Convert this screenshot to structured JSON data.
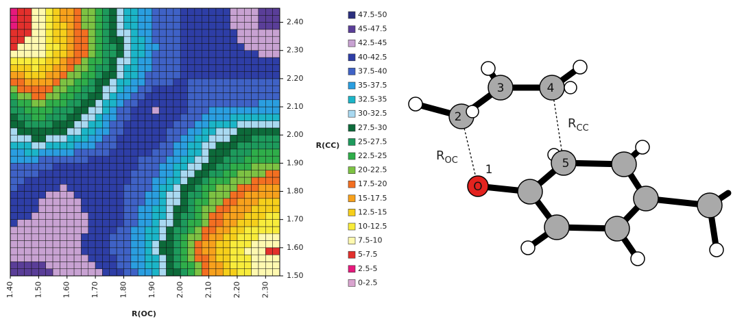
{
  "chart_data": {
    "type": "contour",
    "xlabel": "R(OC)",
    "ylabel": "R(CC)",
    "x": [
      1.4,
      1.5,
      1.6,
      1.7,
      1.8,
      1.9,
      2.0,
      2.1,
      2.2,
      2.3
    ],
    "y": [
      1.5,
      1.6,
      1.7,
      1.8,
      1.9,
      2.0,
      2.1,
      2.2,
      2.3,
      2.4
    ],
    "z": [
      [
        46,
        46,
        44,
        44,
        40,
        35,
        27,
        18,
        12,
        9
      ],
      [
        44,
        44,
        44,
        41,
        38,
        33,
        24,
        16,
        11,
        7
      ],
      [
        42,
        43,
        44,
        42,
        40,
        35,
        28,
        20,
        15,
        12
      ],
      [
        40,
        42,
        43,
        41,
        40,
        37,
        30,
        23,
        19,
        16
      ],
      [
        37,
        39,
        40,
        41,
        41,
        39,
        35,
        29,
        25,
        22
      ],
      [
        32,
        28,
        31,
        36,
        41,
        42,
        38,
        33,
        29,
        27
      ],
      [
        27,
        22,
        26,
        31,
        38,
        43,
        41,
        38,
        38,
        37
      ],
      [
        18,
        14,
        20,
        26,
        33,
        39,
        40,
        40,
        40,
        40
      ],
      [
        8,
        8,
        15,
        22,
        30,
        37,
        40,
        40,
        42,
        43
      ],
      [
        3,
        9,
        16,
        23,
        32,
        38,
        40,
        40,
        43,
        46
      ]
    ],
    "xlim": [
      1.4,
      2.35
    ],
    "ylim": [
      1.5,
      2.45
    ],
    "xticks": [
      {
        "value": 1.4,
        "label": "1.40"
      },
      {
        "value": 1.5,
        "label": "1.50"
      },
      {
        "value": 1.6,
        "label": "1.60"
      },
      {
        "value": 1.7,
        "label": "1.70"
      },
      {
        "value": 1.8,
        "label": "1.80"
      },
      {
        "value": 1.9,
        "label": "1.90"
      },
      {
        "value": 2.0,
        "label": "2.00"
      },
      {
        "value": 2.1,
        "label": "2.10"
      },
      {
        "value": 2.2,
        "label": "2.20"
      },
      {
        "value": 2.3,
        "label": "2.30"
      }
    ],
    "yticks": [
      {
        "value": 1.5,
        "label": "1.50"
      },
      {
        "value": 1.6,
        "label": "1.60"
      },
      {
        "value": 1.7,
        "label": "1.70"
      },
      {
        "value": 1.8,
        "label": "1.80"
      },
      {
        "value": 1.9,
        "label": "1.90"
      },
      {
        "value": 2.0,
        "label": "2.00"
      },
      {
        "value": 2.1,
        "label": "2.10"
      },
      {
        "value": 2.2,
        "label": "2.20"
      },
      {
        "value": 2.3,
        "label": "2.30"
      },
      {
        "value": 2.4,
        "label": "2.40"
      }
    ],
    "levels": [
      {
        "label": "47.5-50",
        "min": 47.5,
        "max": 50,
        "color": "#2b2f7e"
      },
      {
        "label": "45-47.5",
        "min": 45,
        "max": 47.5,
        "color": "#5a3e98"
      },
      {
        "label": "42.5-45",
        "min": 42.5,
        "max": 45,
        "color": "#c8a2d2"
      },
      {
        "label": "40-42.5",
        "min": 40,
        "max": 42.5,
        "color": "#2e3ea6"
      },
      {
        "label": "37.5-40",
        "min": 37.5,
        "max": 40,
        "color": "#3f62c6"
      },
      {
        "label": "35-37.5",
        "min": 35,
        "max": 37.5,
        "color": "#2a9ee0"
      },
      {
        "label": "32.5-35",
        "min": 32.5,
        "max": 35,
        "color": "#1bb5c8"
      },
      {
        "label": "30-32.5",
        "min": 30,
        "max": 32.5,
        "color": "#a9d9f1"
      },
      {
        "label": "27.5-30",
        "min": 27.5,
        "max": 30,
        "color": "#0d6a3a"
      },
      {
        "label": "25-27.5",
        "min": 25,
        "max": 27.5,
        "color": "#1d9a5c"
      },
      {
        "label": "22.5-25",
        "min": 22.5,
        "max": 25,
        "color": "#2fae4a"
      },
      {
        "label": "20-22.5",
        "min": 20,
        "max": 22.5,
        "color": "#7dc243"
      },
      {
        "label": "17.5-20",
        "min": 17.5,
        "max": 20,
        "color": "#f36f21"
      },
      {
        "label": "15-17.5",
        "min": 15,
        "max": 17.5,
        "color": "#f7a11c"
      },
      {
        "label": "12.5-15",
        "min": 12.5,
        "max": 15,
        "color": "#f6cf1b"
      },
      {
        "label": "10-12.5",
        "min": 10,
        "max": 12.5,
        "color": "#f8ec3b"
      },
      {
        "label": "7.5-10",
        "min": 7.5,
        "max": 10,
        "color": "#fff9b0"
      },
      {
        "label": "5-7.5",
        "min": 5,
        "max": 7.5,
        "color": "#e3302c"
      },
      {
        "label": "2.5-5",
        "min": 2.5,
        "max": 5,
        "color": "#e6197d"
      },
      {
        "label": "0-2.5",
        "min": 0,
        "max": 2.5,
        "color": "#d9a4cf"
      }
    ]
  },
  "diagram": {
    "atom_numbers": [
      "1",
      "2",
      "3",
      "4",
      "5"
    ],
    "oxygen": "O",
    "r_oc": {
      "main": "R",
      "sub": "OC"
    },
    "r_cc": {
      "main": "R",
      "sub": "CC"
    }
  }
}
